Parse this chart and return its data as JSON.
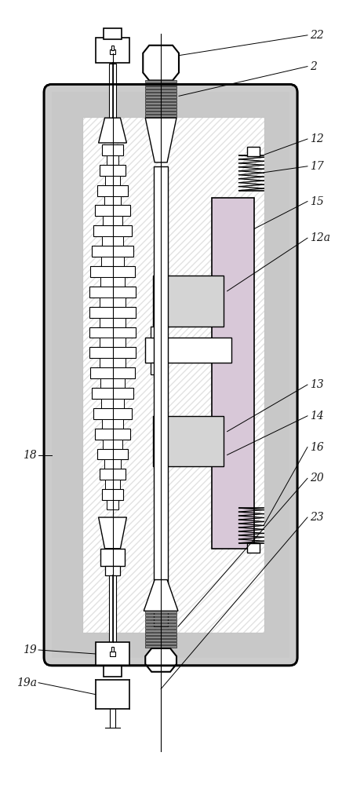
{
  "figsize": [
    4.5,
    10.0
  ],
  "dpi": 100,
  "bg_color": "#ffffff",
  "body_fill": "#c8c8c8",
  "hatch_fill": "#c0c0c0",
  "white": "#ffffff",
  "gray_stage": "#c8c8c8",
  "light_pink": "#e8d0e0",
  "label_fontsize": 10,
  "label_color": "#1a1a1a"
}
